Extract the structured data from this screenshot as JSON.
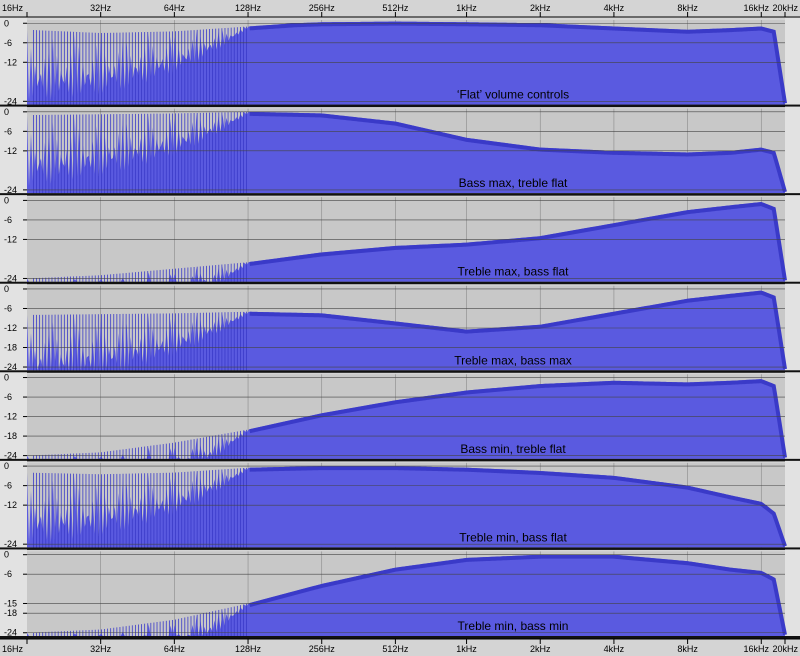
{
  "chart_data": {
    "type": "area",
    "x_axis": {
      "scale": "log2",
      "range_hz": [
        16,
        20000
      ],
      "tick_hz": [
        16,
        32,
        64,
        128,
        256,
        512,
        1000,
        2000,
        4000,
        8000,
        16000,
        20000
      ],
      "tick_labels": [
        "16Hz",
        "32Hz",
        "64Hz",
        "128Hz",
        "256Hz",
        "512Hz",
        "1kHz",
        "2kHz",
        "4kHz",
        "8kHz",
        "16kHz",
        "20kHz"
      ]
    },
    "colors": {
      "fill": "#5a5ae0",
      "edge": "#3a3ac8",
      "background": "#c8c8c8",
      "grid": "#8a8a8a"
    },
    "panels": [
      {
        "caption": "‘Flat’ volume controls",
        "y_ticks": [
          "0",
          "-6",
          "-12",
          "-24"
        ],
        "y_tick_db": [
          0,
          -6,
          -12,
          -24
        ],
        "ylim": [
          -25,
          1
        ],
        "envelope_db": [
          [
            16,
            -2
          ],
          [
            32,
            -3
          ],
          [
            64,
            -2.5
          ],
          [
            128,
            -1
          ],
          [
            200,
            0
          ],
          [
            256,
            0.3
          ],
          [
            512,
            0.5
          ],
          [
            1000,
            0.3
          ],
          [
            2000,
            0
          ],
          [
            4000,
            -1
          ],
          [
            8000,
            -2
          ],
          [
            12000,
            -1.5
          ],
          [
            16000,
            -1
          ],
          [
            18000,
            -2
          ],
          [
            20000,
            -24
          ]
        ]
      },
      {
        "caption": "Bass max, treble flat",
        "y_ticks": [
          "0",
          "-6",
          "-12",
          "-24"
        ],
        "y_tick_db": [
          0,
          -6,
          -12,
          -24
        ],
        "ylim": [
          -25,
          1
        ],
        "envelope_db": [
          [
            16,
            -1
          ],
          [
            64,
            -0.5
          ],
          [
            128,
            0
          ],
          [
            256,
            -0.5
          ],
          [
            512,
            -3
          ],
          [
            1000,
            -8
          ],
          [
            2000,
            -11
          ],
          [
            4000,
            -12
          ],
          [
            8000,
            -12.5
          ],
          [
            12000,
            -12
          ],
          [
            16000,
            -11
          ],
          [
            18000,
            -12
          ],
          [
            20000,
            -24
          ]
        ]
      },
      {
        "caption": "Treble max, bass flat",
        "y_ticks": [
          "0",
          "-6",
          "-12",
          "-24"
        ],
        "y_tick_db": [
          0,
          -6,
          -12,
          -24
        ],
        "ylim": [
          -25,
          1
        ],
        "envelope_db": [
          [
            16,
            -24
          ],
          [
            32,
            -23
          ],
          [
            64,
            -21
          ],
          [
            128,
            -19
          ],
          [
            256,
            -16
          ],
          [
            512,
            -14
          ],
          [
            1000,
            -13
          ],
          [
            2000,
            -11
          ],
          [
            4000,
            -7
          ],
          [
            8000,
            -3
          ],
          [
            12000,
            -1.5
          ],
          [
            16000,
            -0.5
          ],
          [
            18000,
            -2
          ],
          [
            20000,
            -24
          ]
        ]
      },
      {
        "caption": "Treble max, bass max",
        "y_ticks": [
          "0",
          "-6",
          "-12",
          "-18",
          "-24"
        ],
        "y_tick_db": [
          0,
          -6,
          -12,
          -18,
          -24
        ],
        "ylim": [
          -25,
          1
        ],
        "envelope_db": [
          [
            16,
            -8
          ],
          [
            64,
            -7.5
          ],
          [
            128,
            -7
          ],
          [
            256,
            -7.5
          ],
          [
            512,
            -10
          ],
          [
            1000,
            -12.5
          ],
          [
            2000,
            -11
          ],
          [
            4000,
            -7
          ],
          [
            8000,
            -3
          ],
          [
            12000,
            -1.5
          ],
          [
            16000,
            -0.5
          ],
          [
            18000,
            -2
          ],
          [
            20000,
            -24
          ]
        ]
      },
      {
        "caption": "Bass min, treble flat",
        "y_ticks": [
          "0",
          "-6",
          "-12",
          "-18",
          "-24"
        ],
        "y_tick_db": [
          0,
          -6,
          -12,
          -18,
          -24
        ],
        "ylim": [
          -25,
          1
        ],
        "envelope_db": [
          [
            16,
            -24
          ],
          [
            32,
            -23
          ],
          [
            64,
            -20
          ],
          [
            128,
            -16
          ],
          [
            256,
            -11
          ],
          [
            512,
            -7
          ],
          [
            1000,
            -4
          ],
          [
            2000,
            -2
          ],
          [
            4000,
            -1
          ],
          [
            8000,
            -1.5
          ],
          [
            12000,
            -1
          ],
          [
            16000,
            -0.5
          ],
          [
            18000,
            -2
          ],
          [
            20000,
            -24
          ]
        ]
      },
      {
        "caption": "Treble min, bass flat",
        "y_ticks": [
          "0",
          "-6",
          "-12",
          "-24"
        ],
        "y_tick_db": [
          0,
          -6,
          -12,
          -24
        ],
        "ylim": [
          -25,
          1
        ],
        "envelope_db": [
          [
            16,
            -2
          ],
          [
            32,
            -2.5
          ],
          [
            64,
            -2
          ],
          [
            128,
            -0.5
          ],
          [
            256,
            0
          ],
          [
            512,
            0
          ],
          [
            1000,
            -0.5
          ],
          [
            2000,
            -1.5
          ],
          [
            4000,
            -3
          ],
          [
            8000,
            -6
          ],
          [
            12000,
            -9
          ],
          [
            16000,
            -11
          ],
          [
            18000,
            -14
          ],
          [
            20000,
            -24
          ]
        ]
      },
      {
        "caption": "Treble min, bass min",
        "y_ticks": [
          "0",
          "-6",
          "-15",
          "-18",
          "-24"
        ],
        "y_tick_db": [
          0,
          -6,
          -15,
          -18,
          -24
        ],
        "ylim": [
          -25,
          1
        ],
        "envelope_db": [
          [
            16,
            -24
          ],
          [
            32,
            -23
          ],
          [
            64,
            -20
          ],
          [
            128,
            -15
          ],
          [
            256,
            -9
          ],
          [
            512,
            -4
          ],
          [
            1000,
            -1
          ],
          [
            2000,
            0
          ],
          [
            4000,
            0
          ],
          [
            8000,
            -2
          ],
          [
            12000,
            -4
          ],
          [
            16000,
            -5
          ],
          [
            18000,
            -7
          ],
          [
            20000,
            -24
          ]
        ]
      }
    ]
  }
}
